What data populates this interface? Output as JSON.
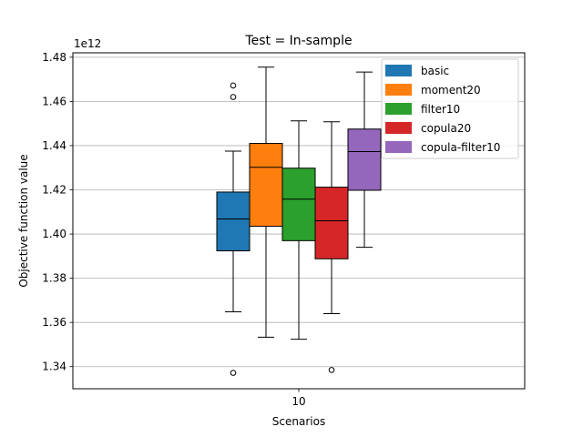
{
  "chart_data": {
    "type": "box",
    "title": "Test = In-sample",
    "xlabel": "Scenarios",
    "ylabel": "Objective function value",
    "offset_label": "1e12",
    "categories": [
      "10"
    ],
    "ylim": [
      1.33,
      1.482
    ],
    "yticks": [
      1.34,
      1.36,
      1.38,
      1.4,
      1.42,
      1.44,
      1.46,
      1.48
    ],
    "ytick_labels": [
      "1.34",
      "1.36",
      "1.38",
      "1.40",
      "1.42",
      "1.44",
      "1.46",
      "1.48"
    ],
    "grid": "y",
    "legend_position": "top-right",
    "series": [
      {
        "name": "basic",
        "color": "#1f77b4",
        "whisker_low": 1.3648,
        "q1": 1.3924,
        "median": 1.4068,
        "q3": 1.419,
        "whisker_high": 1.4375,
        "outliers": [
          1.3372,
          1.462,
          1.4672
        ]
      },
      {
        "name": "moment20",
        "color": "#ff7f0e",
        "whisker_low": 1.3533,
        "q1": 1.4035,
        "median": 1.4302,
        "q3": 1.441,
        "whisker_high": 1.4755,
        "outliers": []
      },
      {
        "name": "filter10",
        "color": "#2ca02c",
        "whisker_low": 1.3524,
        "q1": 1.397,
        "median": 1.4158,
        "q3": 1.4298,
        "whisker_high": 1.4512,
        "outliers": []
      },
      {
        "name": "copula20",
        "color": "#d62728",
        "whisker_low": 1.364,
        "q1": 1.3888,
        "median": 1.406,
        "q3": 1.4212,
        "whisker_high": 1.4508,
        "outliers": [
          1.3385
        ]
      },
      {
        "name": "copula-filter10",
        "color": "#9467bd",
        "whisker_low": 1.394,
        "q1": 1.4198,
        "median": 1.4373,
        "q3": 1.4475,
        "whisker_high": 1.4733,
        "outliers": []
      }
    ]
  }
}
